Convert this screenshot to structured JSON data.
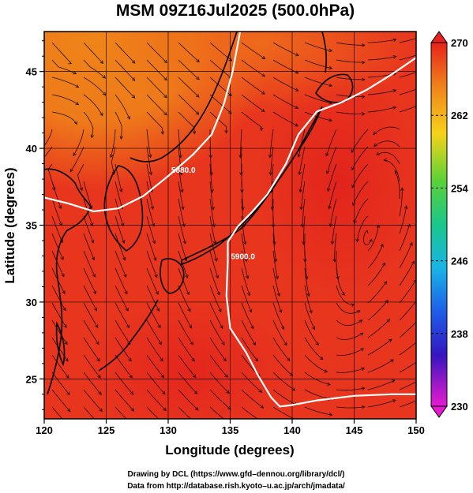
{
  "chart_data": {
    "type": "heatmap",
    "title": "MSM 09Z16Jul2025 (500.0hPa)",
    "xlabel": "Longitude (degrees)",
    "ylabel": "Latitude  (degrees)",
    "xlim": [
      120,
      150
    ],
    "ylim": [
      22.4,
      47.6
    ],
    "x_ticks": [
      "120",
      "125",
      "130",
      "135",
      "140",
      "145",
      "150"
    ],
    "y_ticks": [
      "25",
      "30",
      "35",
      "40",
      "45"
    ],
    "x_tick_values": [
      120,
      125,
      130,
      135,
      140,
      145,
      150
    ],
    "y_tick_values": [
      25,
      30,
      35,
      40,
      45
    ],
    "colorbar": {
      "min": 230,
      "max": 270,
      "tick_labels": [
        "270",
        "262",
        "254",
        "246",
        "238",
        "230"
      ],
      "tick_values": [
        270,
        262,
        254,
        246,
        238,
        230
      ],
      "colormap": "rainbow (magenta-blue-cyan-green-yellow-orange-red)"
    },
    "field_range_shown": [
      263,
      270
    ],
    "contours": [
      {
        "label": "5880.0",
        "points": [
          [
            120.0,
            36.8
          ],
          [
            122.0,
            36.4
          ],
          [
            124.0,
            35.9
          ],
          [
            126.0,
            36.1
          ],
          [
            128.0,
            36.9
          ],
          [
            130.0,
            38.2
          ],
          [
            132.0,
            39.6
          ],
          [
            133.5,
            40.9
          ],
          [
            134.5,
            42.9
          ],
          [
            135.2,
            45.0
          ],
          [
            135.8,
            47.6
          ]
        ]
      },
      {
        "label": "5900.0",
        "points": [
          [
            150.0,
            45.9
          ],
          [
            148.0,
            44.8
          ],
          [
            146.0,
            43.8
          ],
          [
            144.0,
            43.0
          ],
          [
            142.0,
            42.4
          ],
          [
            140.5,
            40.9
          ],
          [
            139.5,
            39.0
          ],
          [
            138.0,
            37.0
          ],
          [
            136.8,
            35.9
          ],
          [
            135.6,
            34.9
          ],
          [
            134.8,
            33.9
          ],
          [
            134.8,
            32.6
          ],
          [
            134.7,
            30.4
          ],
          [
            135.0,
            28.3
          ],
          [
            136.3,
            26.7
          ],
          [
            137.2,
            25.3
          ],
          [
            138.3,
            23.8
          ],
          [
            139.0,
            23.2
          ],
          [
            140.0,
            23.3
          ],
          [
            142.0,
            23.6
          ],
          [
            145.0,
            23.9
          ],
          [
            148.0,
            24.0
          ],
          [
            150.0,
            24.0
          ]
        ]
      }
    ],
    "wind_vectors": "streamlines (black)",
    "credits": [
      "Drawing by DCL (https://www.gfd–dennou.org/library/dcl/)",
      "Data from http://database.rish.kyoto–u.ac.jp/arch/jmadata/"
    ],
    "colors": {
      "warm_red": "#e6301e",
      "orange": "#ee7a18",
      "contour": "#ffffff",
      "streamline": "#000000"
    }
  }
}
